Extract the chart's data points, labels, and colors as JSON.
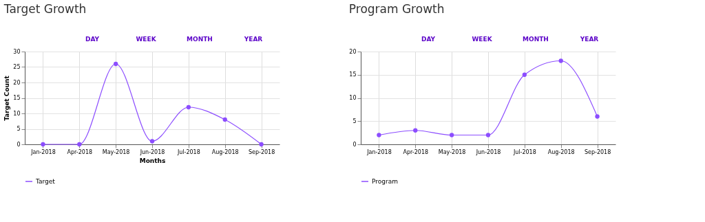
{
  "chart_data": [
    {
      "type": "line",
      "title": "Target Growth",
      "xlabel": "Months",
      "ylabel": "Target Count",
      "categories": [
        "Jan-2018",
        "Apr-2018",
        "May-2018",
        "Jun-2018",
        "Jul-2018",
        "Aug-2018",
        "Sep-2018"
      ],
      "series": [
        {
          "name": "Target",
          "color": "#8c4dff",
          "values": [
            0,
            0,
            26,
            1,
            12,
            8,
            0
          ]
        }
      ],
      "ylim": [
        0,
        30
      ],
      "yticks": [
        0,
        5,
        10,
        15,
        20,
        25,
        30
      ],
      "grid": true,
      "legend": "bottom left",
      "marker": "circle",
      "line_style": "solid",
      "annotations": [
        "DAY",
        "WEEK",
        "MONTH",
        "YEAR"
      ]
    },
    {
      "type": "line",
      "title": "Program Growth",
      "categories": [
        "Jan-2018",
        "Apr-2018",
        "May-2018",
        "Jun-2018",
        "Jul-2018",
        "Aug-2018",
        "Sep-2018"
      ],
      "series": [
        {
          "name": "Program",
          "color": "#8c4dff",
          "values": [
            2,
            3,
            2,
            2,
            15,
            18,
            6
          ]
        }
      ],
      "ylim": [
        0,
        20
      ],
      "yticks": [
        0,
        5,
        10,
        15,
        20
      ],
      "grid": true,
      "legend": "bottom left",
      "marker": "circle",
      "line_style": "solid",
      "annotations": [
        "DAY",
        "WEEK",
        "MONTH",
        "YEAR"
      ]
    }
  ]
}
